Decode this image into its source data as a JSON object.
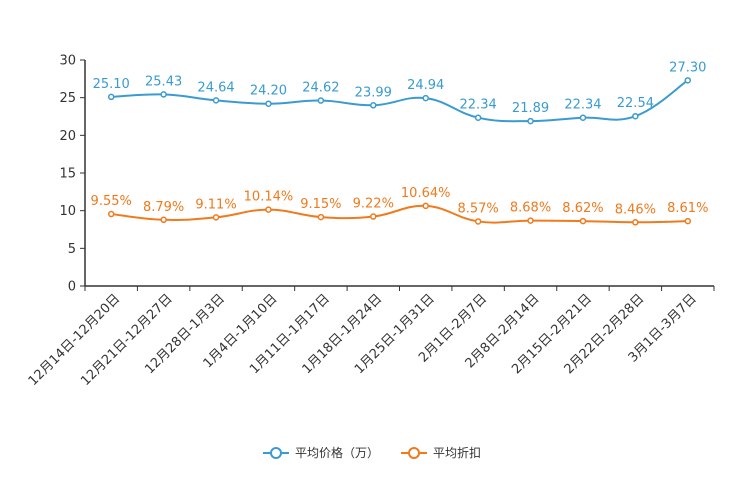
{
  "chart_data": {
    "type": "line",
    "title": "",
    "xlabel": "",
    "ylabel": "",
    "ylim": [
      0,
      30
    ],
    "yticks": [
      0,
      5,
      10,
      15,
      20,
      25,
      30
    ],
    "categories": [
      "12月14日-12月20日",
      "12月21日-12月27日",
      "12月28日-1月3日",
      "1月4日-1月10日",
      "1月11日-1月17日",
      "1月18日-1月24日",
      "1月25日-1月31日",
      "2月1日-2月7日",
      "2月8日-2月14日",
      "2月15日-2月21日",
      "2月22日-2月28日",
      "3月1日-3月7日"
    ],
    "series": [
      {
        "name": "平均价格（万）",
        "color": "#3a9bd0",
        "values": [
          25.1,
          25.43,
          24.64,
          24.2,
          24.62,
          23.99,
          24.94,
          22.34,
          21.89,
          22.34,
          22.54,
          27.3
        ],
        "labels": [
          "25.10",
          "25.43",
          "24.64",
          "24.20",
          "24.62",
          "23.99",
          "24.94",
          "22.34",
          "21.89",
          "22.34",
          "22.54",
          "27.30"
        ]
      },
      {
        "name": "平均折扣",
        "color": "#f07a1c",
        "values": [
          9.55,
          8.79,
          9.11,
          10.14,
          9.15,
          9.22,
          10.64,
          8.57,
          8.68,
          8.62,
          8.46,
          8.61
        ],
        "labels": [
          "9.55%",
          "8.79%",
          "9.11%",
          "10.14%",
          "9.15%",
          "9.22%",
          "10.64%",
          "8.57%",
          "8.68%",
          "8.62%",
          "8.46%",
          "8.61%"
        ]
      }
    ],
    "legend_position": "bottom-center"
  }
}
